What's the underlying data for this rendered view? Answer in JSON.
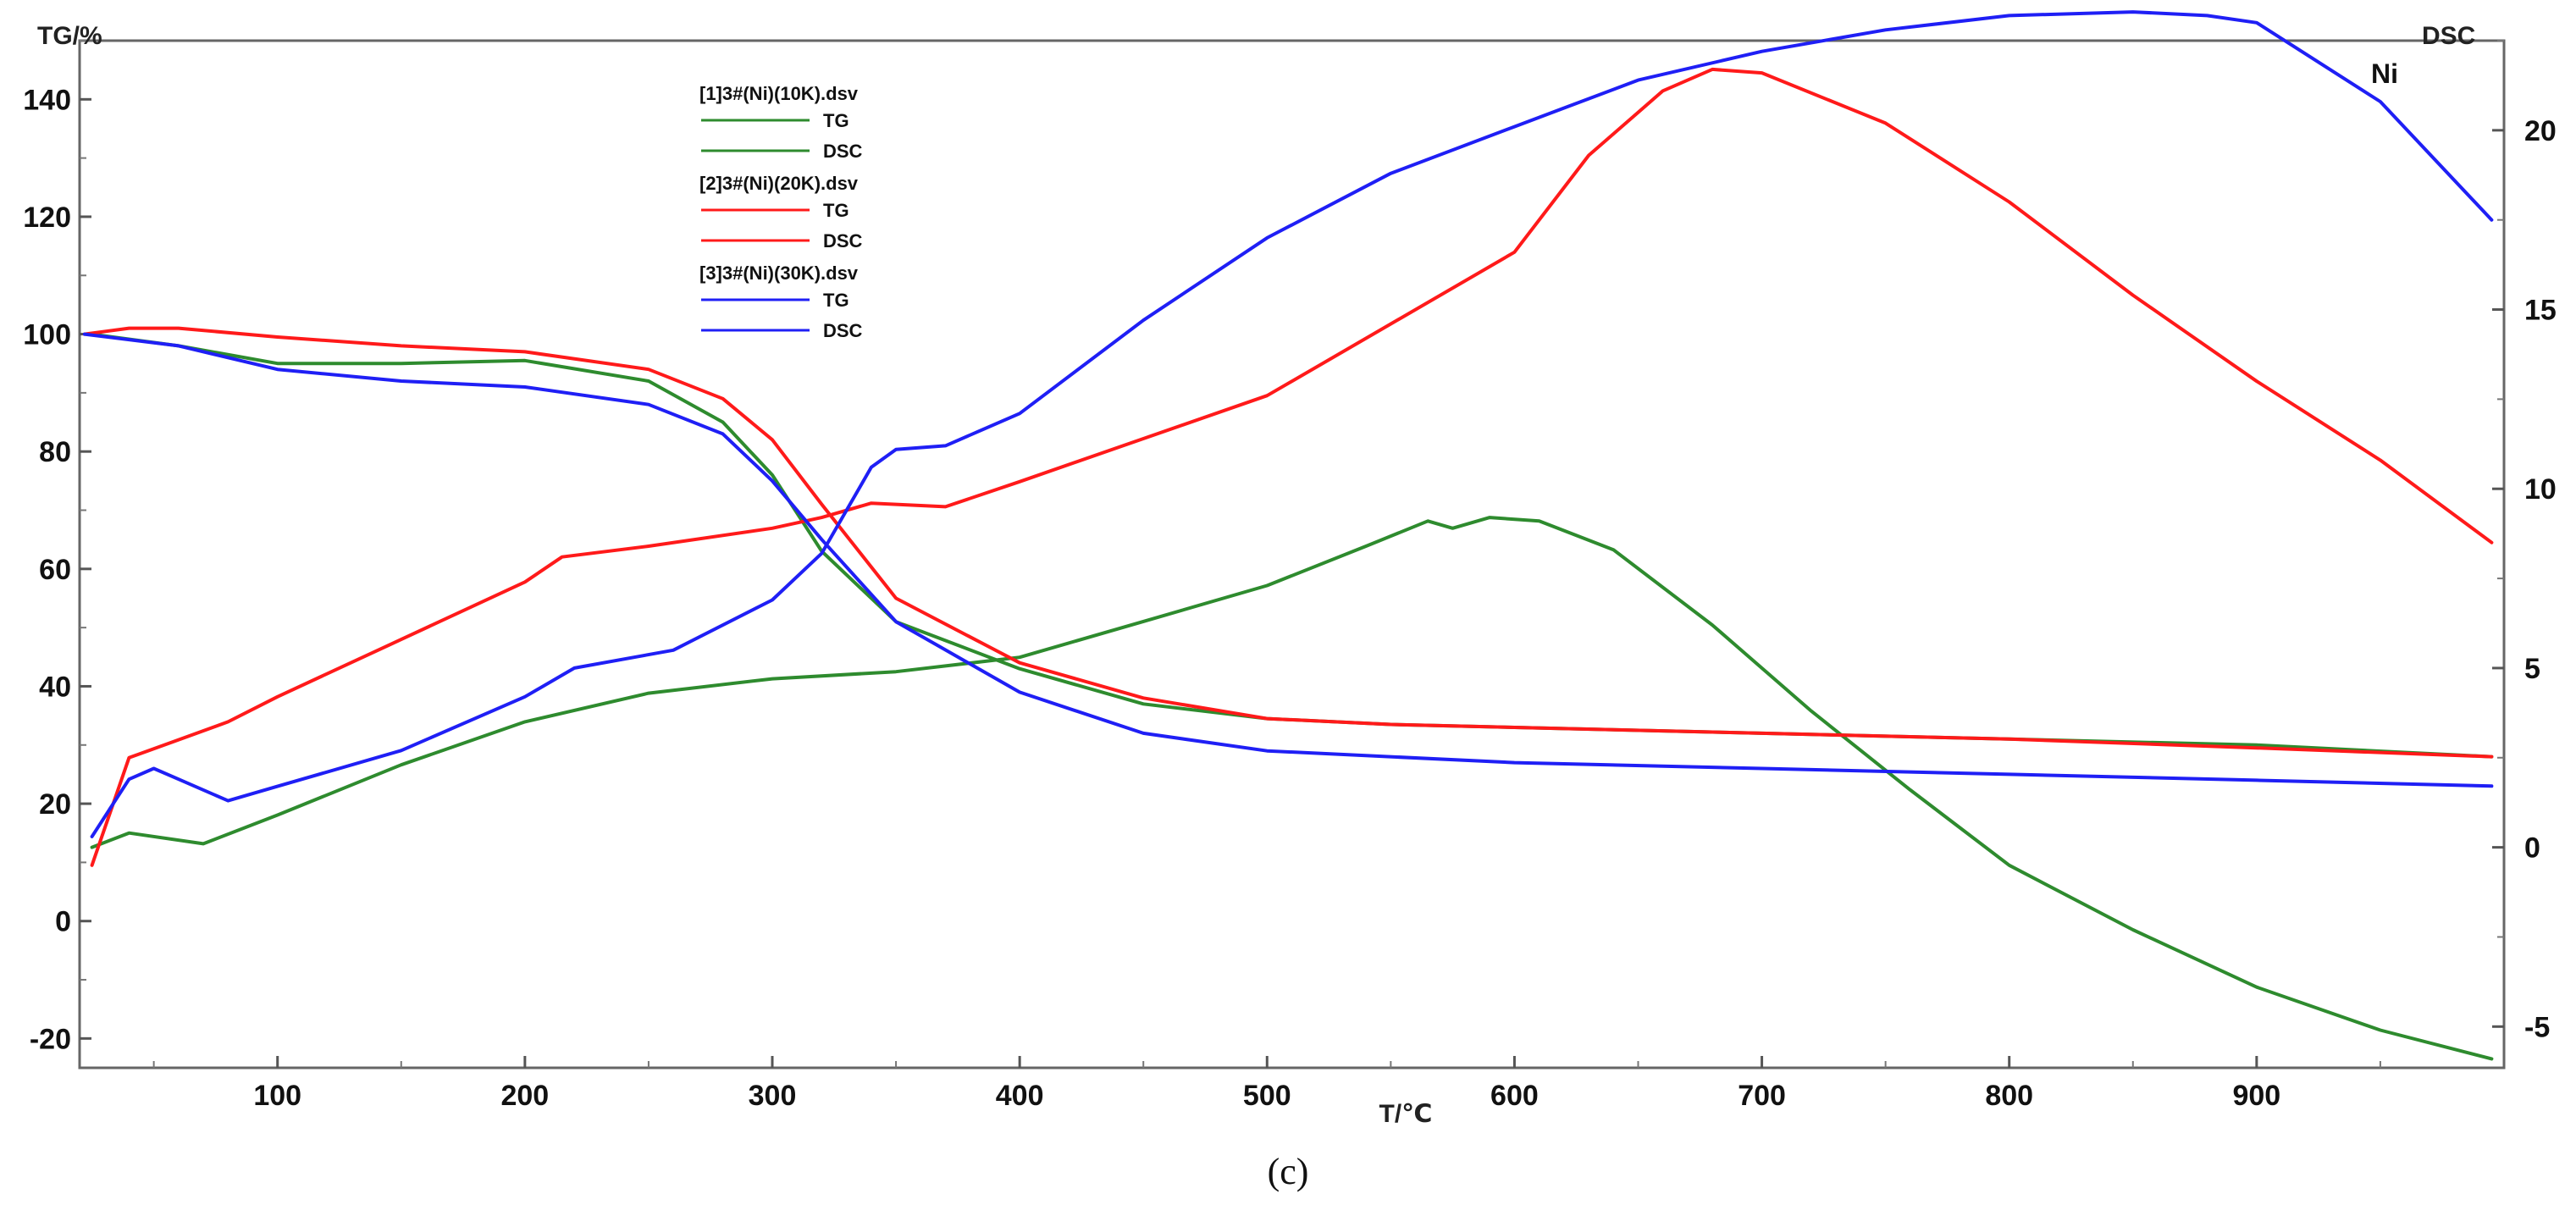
{
  "chart_data": {
    "type": "line",
    "title": "Ni",
    "caption": "(c)",
    "xlabel": "T/℃",
    "ylabel_left": "TG/%",
    "ylabel_right": "DSC",
    "xlim": [
      20,
      1000
    ],
    "ylim_left": [
      -25,
      150
    ],
    "ylim_right": [
      -6.15,
      22.5
    ],
    "x_ticks": [
      100,
      200,
      300,
      400,
      500,
      600,
      700,
      800,
      900
    ],
    "y_left_ticks": [
      -20,
      0,
      20,
      40,
      60,
      80,
      100,
      120,
      140
    ],
    "y_right_ticks": [
      -5,
      0,
      5,
      10,
      15,
      20
    ],
    "colors": {
      "green": "#2e8b2e",
      "red": "#ff1a1a",
      "blue": "#1f1ff5"
    },
    "legend": [
      {
        "file": "[1]3#(Ni)(10K).dsv",
        "entries": [
          "TG",
          "DSC"
        ],
        "color": "#2e8b2e"
      },
      {
        "file": "[2]3#(Ni)(20K).dsv",
        "entries": [
          "TG",
          "DSC"
        ],
        "color": "#ff1a1a"
      },
      {
        "file": "[3]3#(Ni)(30K).dsv",
        "entries": [
          "TG",
          "DSC"
        ],
        "color": "#1f1ff5"
      }
    ],
    "series": [
      {
        "name": "[1] TG",
        "axis": "left",
        "color": "#2e8b2e",
        "x": [
          25,
          60,
          100,
          150,
          200,
          250,
          280,
          300,
          320,
          350,
          400,
          450,
          500,
          550,
          600,
          700,
          800,
          900,
          995
        ],
        "y": [
          100,
          98,
          95,
          95,
          95.5,
          92,
          85,
          76,
          63,
          51,
          43,
          37,
          34.5,
          33.5,
          33,
          32,
          31,
          30,
          28
        ]
      },
      {
        "name": "[1] DSC",
        "axis": "right",
        "color": "#2e8b2e",
        "x": [
          25,
          40,
          70,
          100,
          150,
          200,
          250,
          300,
          350,
          400,
          450,
          500,
          540,
          565,
          575,
          590,
          610,
          640,
          680,
          720,
          760,
          800,
          850,
          900,
          950,
          995
        ],
        "y": [
          0,
          0.4,
          0.1,
          0.9,
          2.3,
          3.5,
          4.3,
          4.7,
          4.9,
          5.3,
          6.3,
          7.3,
          8.4,
          9.1,
          8.9,
          9.2,
          9.1,
          8.3,
          6.2,
          3.8,
          1.6,
          -0.5,
          -2.3,
          -3.9,
          -5.1,
          -5.9
        ]
      },
      {
        "name": "[2] TG",
        "axis": "left",
        "color": "#ff1a1a",
        "x": [
          22,
          40,
          60,
          100,
          150,
          200,
          250,
          280,
          300,
          320,
          350,
          400,
          450,
          500,
          550,
          600,
          700,
          800,
          900,
          995
        ],
        "y": [
          100,
          101,
          101,
          99.5,
          98,
          97,
          94,
          89,
          82,
          71,
          55,
          44,
          38,
          34.5,
          33.5,
          33,
          32,
          31,
          29.5,
          28
        ]
      },
      {
        "name": "[2] DSC",
        "axis": "right",
        "color": "#ff1a1a",
        "x": [
          25,
          40,
          60,
          80,
          100,
          150,
          200,
          215,
          250,
          300,
          320,
          340,
          370,
          400,
          450,
          500,
          550,
          600,
          630,
          660,
          680,
          700,
          750,
          800,
          850,
          900,
          950,
          995
        ],
        "y": [
          -0.5,
          2.5,
          3,
          3.5,
          4.2,
          5.8,
          7.4,
          8.1,
          8.4,
          8.9,
          9.2,
          9.6,
          9.5,
          10.2,
          11.4,
          12.6,
          14.6,
          16.6,
          19.3,
          21.1,
          21.7,
          21.6,
          20.2,
          18,
          15.4,
          13,
          10.8,
          8.5
        ]
      },
      {
        "name": "[3] TG",
        "axis": "left",
        "color": "#1f1ff5",
        "x": [
          22,
          60,
          100,
          150,
          200,
          250,
          280,
          300,
          320,
          350,
          400,
          450,
          500,
          600,
          700,
          800,
          900,
          995
        ],
        "y": [
          100,
          98,
          94,
          92,
          91,
          88,
          83,
          75,
          65,
          51,
          39,
          32,
          29,
          27,
          26,
          25,
          24,
          23
        ]
      },
      {
        "name": "[3] DSC",
        "axis": "right",
        "color": "#1f1ff5",
        "x": [
          25,
          40,
          50,
          60,
          80,
          100,
          150,
          200,
          220,
          260,
          300,
          320,
          340,
          350,
          370,
          400,
          450,
          500,
          550,
          600,
          650,
          700,
          750,
          800,
          850,
          880,
          900,
          950,
          995
        ],
        "y": [
          0.3,
          1.9,
          2.2,
          1.9,
          1.3,
          1.7,
          2.7,
          4.2,
          5,
          5.5,
          6.9,
          8.2,
          10.6,
          11.1,
          11.2,
          12.1,
          14.7,
          17,
          18.8,
          20.1,
          21.4,
          22.2,
          22.8,
          23.2,
          23.3,
          23.2,
          23,
          20.8,
          17.5
        ]
      }
    ]
  }
}
